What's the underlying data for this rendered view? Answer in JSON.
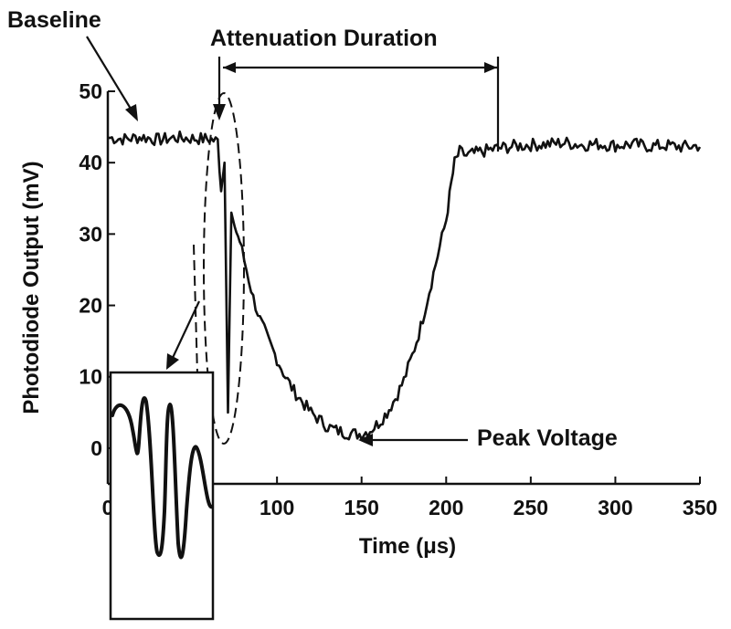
{
  "chart_data": {
    "type": "line",
    "title": "",
    "xlabel": "Time (μs)",
    "ylabel": "Photodiode Output (mV)",
    "xlim": [
      0,
      350
    ],
    "ylim": [
      -5,
      50
    ],
    "xticks": [
      0,
      100,
      150,
      200,
      250,
      300,
      350
    ],
    "yticks": [
      0,
      10,
      20,
      30,
      40,
      50
    ],
    "grid": false,
    "legend": "none",
    "series": [
      {
        "color": "#111111",
        "x": [
          0,
          10,
          20,
          30,
          40,
          50,
          60,
          65,
          67,
          69,
          71,
          73,
          75,
          78,
          82,
          86,
          90,
          95,
          100,
          105,
          110,
          115,
          120,
          125,
          130,
          135,
          140,
          145,
          150,
          155,
          160,
          165,
          170,
          175,
          180,
          185,
          190,
          195,
          200,
          203,
          205,
          208,
          212,
          220,
          230,
          240,
          250,
          260,
          270,
          280,
          290,
          300,
          310,
          320,
          330,
          340,
          350
        ],
        "y": [
          43.5,
          43.3,
          43.6,
          43.2,
          43.5,
          43.4,
          43.3,
          43.0,
          36,
          40,
          5,
          33,
          31,
          29,
          25,
          21,
          18,
          15,
          12.5,
          10,
          8,
          6.5,
          5,
          4,
          3,
          2.5,
          2.2,
          2.0,
          2.0,
          2.5,
          3.5,
          5,
          7,
          9.5,
          13,
          17,
          22,
          27,
          32,
          37,
          40,
          41.5,
          41,
          41.5,
          42,
          42.3,
          42.5,
          42.6,
          42.8,
          42.5,
          42.6,
          42.4,
          42.6,
          42.3,
          42.4,
          42.2,
          42.4
        ]
      }
    ],
    "annotations": {
      "baseline": "Baseline",
      "attenuation": "Attenuation Duration",
      "peak": "Peak Voltage"
    }
  }
}
